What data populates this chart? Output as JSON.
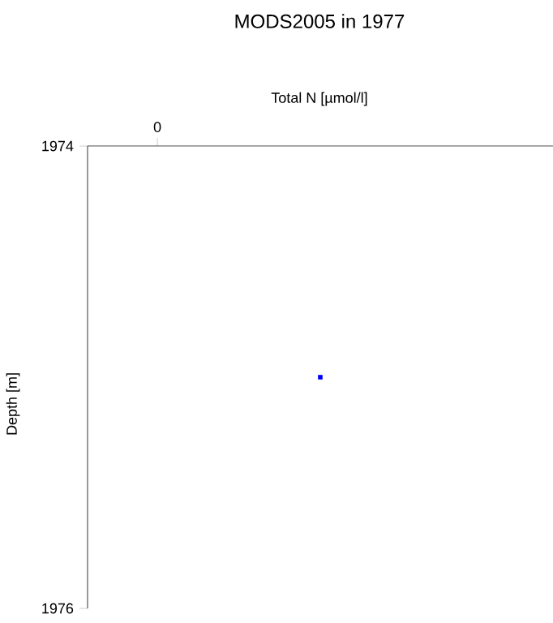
{
  "chart_data": {
    "type": "scatter",
    "title": "MODS2005 in 1977",
    "xlabel": "Total N [µmol/l]",
    "ylabel": "Depth [m]",
    "annotations": [
      "0"
    ],
    "categories": [
      null
    ],
    "values": [
      1975
    ],
    "color": "#0000ff",
    "marker": "square",
    "ylim": [
      1976,
      1974
    ],
    "yticks": [
      {
        "value": 1974,
        "label": "1974"
      },
      {
        "value": 1976,
        "label": "1976"
      }
    ],
    "grid": false
  }
}
